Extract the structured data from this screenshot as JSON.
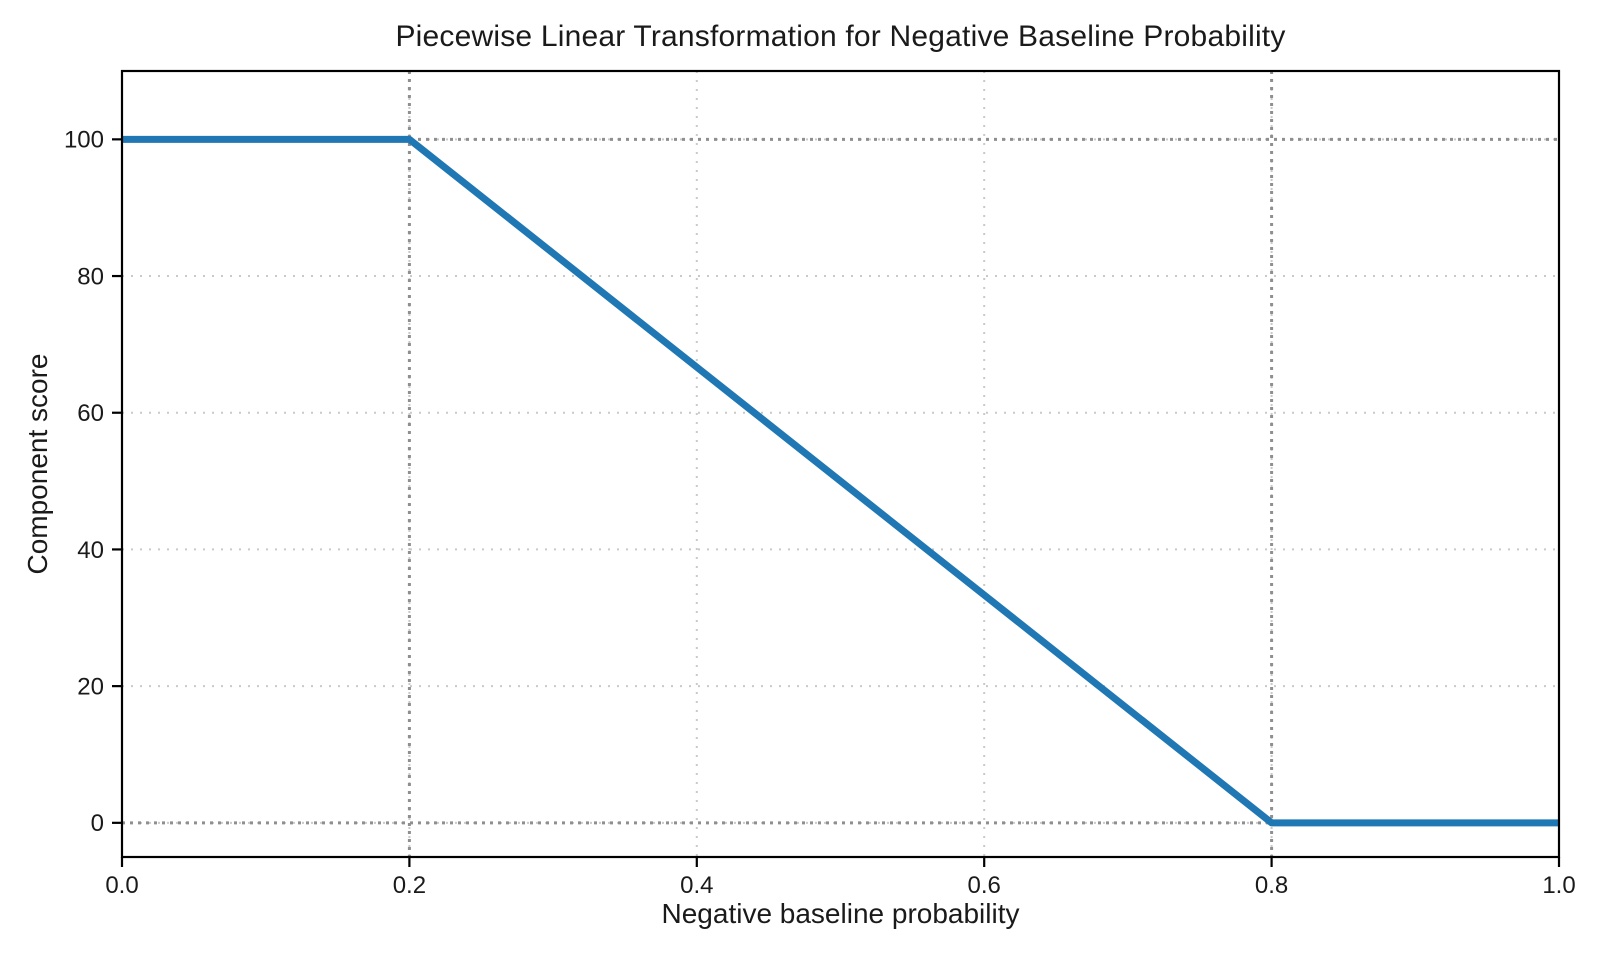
{
  "figure": {
    "background": "#ffffff"
  },
  "chart_data": {
    "type": "line",
    "title": "Piecewise Linear Transformation for Negative Baseline Probability",
    "xlabel": "Negative baseline probability",
    "ylabel": "Component score",
    "xlim": [
      0,
      1
    ],
    "ylim": [
      -5,
      110
    ],
    "xticks": [
      0,
      0.2,
      0.4,
      0.6,
      0.8,
      1
    ],
    "xtick_labels": [
      "0.0",
      "0.2",
      "0.4",
      "0.6",
      "0.8",
      "1.0"
    ],
    "yticks": [
      0,
      20,
      40,
      60,
      80,
      100
    ],
    "ytick_labels": [
      "0",
      "20",
      "40",
      "60",
      "80",
      "100"
    ],
    "legend": "none",
    "grid": {
      "visible": true,
      "style": "dotted",
      "color": "#c9c9c9"
    },
    "series": [
      {
        "name": "component-score-curve",
        "color": "#1f77b4",
        "linewidth": 7,
        "points": [
          [
            0,
            100
          ],
          [
            0.2,
            100
          ],
          [
            0.8,
            0
          ],
          [
            1,
            0
          ]
        ]
      }
    ],
    "reference_lines": {
      "style": "dotted",
      "color": "#8f8f8f",
      "vertical_x": [
        0.2,
        0.8
      ],
      "horizontal_y": [
        0,
        100
      ]
    },
    "axes": {
      "spine_color": "#000000",
      "tick_color": "#000000",
      "tick_label_color": "#1a1a1a",
      "tick_label_size": 24
    }
  }
}
